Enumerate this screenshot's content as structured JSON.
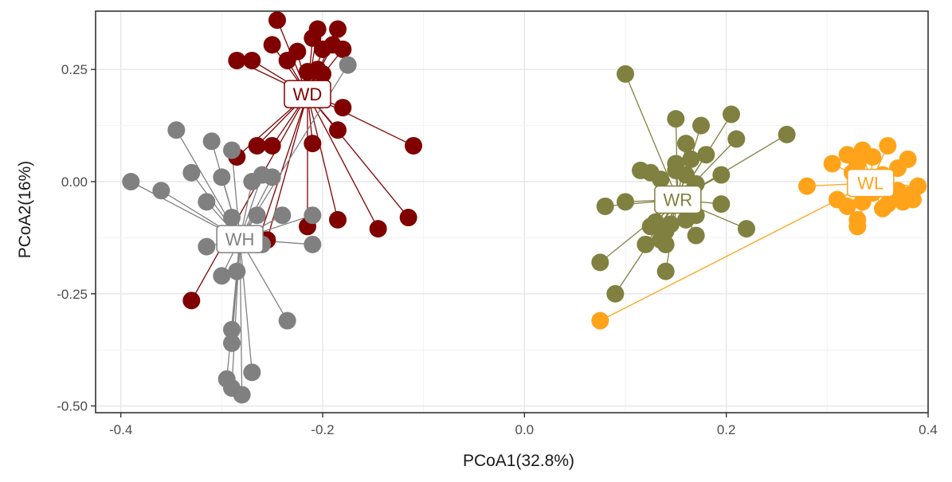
{
  "chart_data": {
    "type": "scatter",
    "title": "",
    "xlabel": "PCoA1(32.8%)",
    "ylabel": "PCoA2(16%)",
    "xlim": [
      -0.425,
      0.4
    ],
    "ylim": [
      -0.515,
      0.38
    ],
    "x_ticks": [
      -0.4,
      -0.2,
      0.0,
      0.2,
      0.4
    ],
    "x_tick_labels": [
      "-0.4",
      "-0.2",
      "0.0",
      "0.2",
      "0.4"
    ],
    "y_ticks": [
      -0.5,
      -0.25,
      0.0,
      0.25
    ],
    "y_tick_labels": [
      "-0.50",
      "-0.25",
      "0.00",
      "0.25"
    ],
    "grid": true,
    "legend": "none",
    "series": [
      {
        "name": "WD",
        "color": "#800000",
        "centroid": [
          -0.215,
          0.195
        ],
        "points": [
          [
            -0.245,
            0.36
          ],
          [
            -0.205,
            0.34
          ],
          [
            -0.185,
            0.34
          ],
          [
            -0.21,
            0.32
          ],
          [
            -0.25,
            0.305
          ],
          [
            -0.19,
            0.305
          ],
          [
            -0.225,
            0.29
          ],
          [
            -0.2,
            0.295
          ],
          [
            -0.18,
            0.295
          ],
          [
            -0.285,
            0.27
          ],
          [
            -0.27,
            0.27
          ],
          [
            -0.235,
            0.27
          ],
          [
            -0.205,
            0.25
          ],
          [
            -0.215,
            0.245
          ],
          [
            -0.2,
            0.24
          ],
          [
            -0.18,
            0.165
          ],
          [
            -0.185,
            0.115
          ],
          [
            -0.21,
            0.085
          ],
          [
            -0.265,
            0.08
          ],
          [
            -0.25,
            0.08
          ],
          [
            -0.11,
            0.08
          ],
          [
            -0.285,
            0.055
          ],
          [
            -0.185,
            -0.085
          ],
          [
            -0.145,
            -0.105
          ],
          [
            -0.115,
            -0.08
          ],
          [
            -0.215,
            -0.1
          ],
          [
            -0.255,
            -0.13
          ],
          [
            -0.265,
            -0.14
          ],
          [
            -0.33,
            -0.265
          ]
        ]
      },
      {
        "name": "WH",
        "color": "#808080",
        "centroid": [
          -0.282,
          -0.128
        ],
        "points": [
          [
            -0.175,
            0.26
          ],
          [
            -0.345,
            0.115
          ],
          [
            -0.31,
            0.09
          ],
          [
            -0.29,
            0.07
          ],
          [
            -0.39,
            0.0
          ],
          [
            -0.36,
            -0.02
          ],
          [
            -0.33,
            0.02
          ],
          [
            -0.3,
            0.01
          ],
          [
            -0.26,
            0.015
          ],
          [
            -0.25,
            0.01
          ],
          [
            -0.27,
            0.0
          ],
          [
            -0.315,
            -0.045
          ],
          [
            -0.29,
            -0.08
          ],
          [
            -0.265,
            -0.075
          ],
          [
            -0.24,
            -0.075
          ],
          [
            -0.21,
            -0.075
          ],
          [
            -0.28,
            -0.12
          ],
          [
            -0.315,
            -0.145
          ],
          [
            -0.21,
            -0.14
          ],
          [
            -0.26,
            -0.14
          ],
          [
            -0.285,
            -0.2
          ],
          [
            -0.3,
            -0.21
          ],
          [
            -0.235,
            -0.31
          ],
          [
            -0.29,
            -0.33
          ],
          [
            -0.29,
            -0.36
          ],
          [
            -0.27,
            -0.425
          ],
          [
            -0.295,
            -0.44
          ],
          [
            -0.29,
            -0.46
          ],
          [
            -0.28,
            -0.475
          ]
        ]
      },
      {
        "name": "WR",
        "color": "#808040",
        "centroid": [
          0.152,
          -0.04
        ],
        "points": [
          [
            0.1,
            0.24
          ],
          [
            0.205,
            0.15
          ],
          [
            0.15,
            0.14
          ],
          [
            0.175,
            0.125
          ],
          [
            0.21,
            0.095
          ],
          [
            0.16,
            0.085
          ],
          [
            0.26,
            0.105
          ],
          [
            0.18,
            0.06
          ],
          [
            0.165,
            0.05
          ],
          [
            0.15,
            0.04
          ],
          [
            0.115,
            0.025
          ],
          [
            0.125,
            0.02
          ],
          [
            0.15,
            0.025
          ],
          [
            0.135,
            0.005
          ],
          [
            0.16,
            0.015
          ],
          [
            0.195,
            0.015
          ],
          [
            0.17,
            -0.005
          ],
          [
            0.1,
            -0.045
          ],
          [
            0.08,
            -0.055
          ],
          [
            0.195,
            -0.05
          ],
          [
            0.17,
            -0.075
          ],
          [
            0.16,
            -0.085
          ],
          [
            0.13,
            -0.09
          ],
          [
            0.145,
            -0.095
          ],
          [
            0.14,
            -0.11
          ],
          [
            0.125,
            -0.1
          ],
          [
            0.22,
            -0.105
          ],
          [
            0.135,
            -0.13
          ],
          [
            0.12,
            -0.14
          ],
          [
            0.17,
            -0.12
          ],
          [
            0.075,
            -0.18
          ],
          [
            0.14,
            -0.14
          ],
          [
            0.14,
            -0.2
          ],
          [
            0.09,
            -0.25
          ]
        ]
      },
      {
        "name": "WL",
        "color": "#ffa31a",
        "centroid": [
          0.343,
          -0.003
        ],
        "points": [
          [
            0.335,
            0.07
          ],
          [
            0.36,
            0.08
          ],
          [
            0.32,
            0.06
          ],
          [
            0.345,
            0.055
          ],
          [
            0.38,
            0.05
          ],
          [
            0.305,
            0.04
          ],
          [
            0.33,
            0.04
          ],
          [
            0.37,
            0.03
          ],
          [
            0.325,
            0.02
          ],
          [
            0.355,
            0.015
          ],
          [
            0.28,
            -0.01
          ],
          [
            0.39,
            -0.01
          ],
          [
            0.37,
            -0.02
          ],
          [
            0.345,
            -0.025
          ],
          [
            0.38,
            -0.03
          ],
          [
            0.31,
            -0.04
          ],
          [
            0.335,
            -0.045
          ],
          [
            0.36,
            -0.05
          ],
          [
            0.385,
            -0.04
          ],
          [
            0.32,
            -0.055
          ],
          [
            0.355,
            -0.06
          ],
          [
            0.375,
            -0.045
          ],
          [
            0.33,
            -0.085
          ],
          [
            0.33,
            -0.1
          ],
          [
            0.075,
            -0.31
          ]
        ]
      }
    ]
  }
}
